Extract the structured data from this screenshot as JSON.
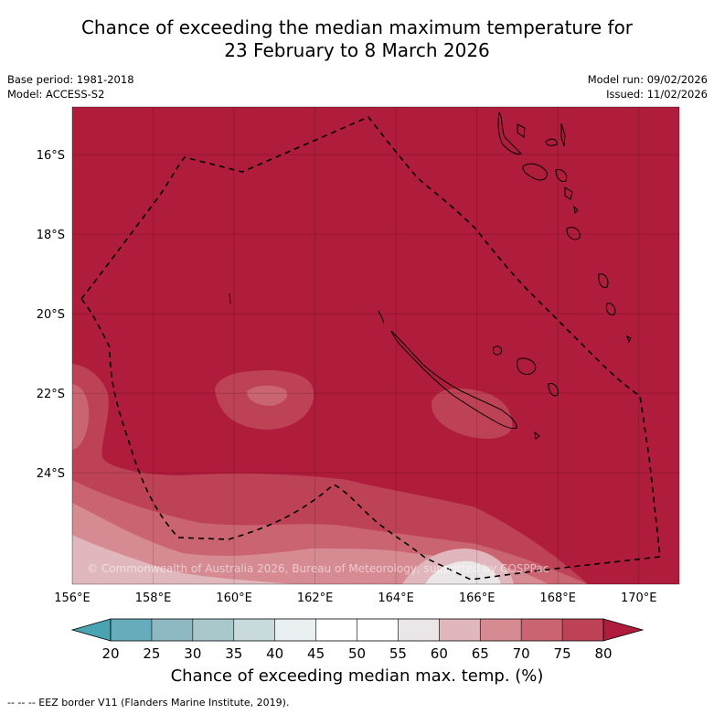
{
  "title": {
    "line1": "Chance of exceeding the median maximum temperature for",
    "line2": "23 February to 8 March 2026"
  },
  "meta": {
    "base_period": "Base period: 1981-2018",
    "model": "Model: ACCESS-S2",
    "model_run": "Model run: 09/02/2026",
    "issued": "Issued: 11/02/2026"
  },
  "map": {
    "lon_range": [
      156,
      171
    ],
    "lat_range": [
      -26.8,
      -14.8
    ],
    "lon_ticks": [
      "156°E",
      "158°E",
      "160°E",
      "162°E",
      "164°E",
      "166°E",
      "168°E",
      "170°E"
    ],
    "lat_ticks": [
      "16°S",
      "18°S",
      "20°S",
      "22°S",
      "24°S"
    ],
    "copyright": "© Commonwealth of Australia 2026, Bureau of Meteorology, supported by COSPPac"
  },
  "colorbar": {
    "ticks": [
      "20",
      "25",
      "30",
      "35",
      "40",
      "45",
      "50",
      "55",
      "60",
      "65",
      "70",
      "75",
      "80"
    ],
    "colors": [
      "#66acbb",
      "#8fb9c2",
      "#a9c8cc",
      "#c8dadc",
      "#eaf0f1",
      "#ffffff",
      "#ffffff",
      "#ebe6e7",
      "#e0b7bc",
      "#d68a92",
      "#c96470",
      "#bd4255"
    ],
    "under_color": "#4aa3b1",
    "over_color": "#b01c3b",
    "label": "Chance of exceeding median max. temp. (%)"
  },
  "footnote": "-- -- -- EEZ border V11 (Flanders Marine Institute, 2019)."
}
